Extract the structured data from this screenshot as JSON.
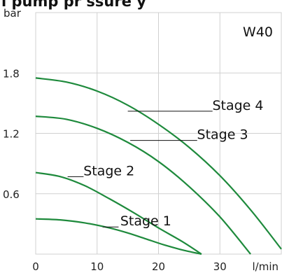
{
  "chart_data": {
    "type": "line",
    "title": "",
    "header_fragment": "l  pump pr ssure y",
    "model_label": "W40",
    "xlabel": "l/min",
    "ylabel": "bar",
    "xlim": [
      0,
      40
    ],
    "ylim": [
      0,
      2.4
    ],
    "x_ticks": [
      0,
      10,
      20,
      30
    ],
    "x_tick_labels": [
      "0",
      "10",
      "20",
      "30"
    ],
    "y_ticks": [
      0.6,
      1.2,
      1.8
    ],
    "y_tick_labels": [
      "0.6",
      "1.2",
      "1.8"
    ],
    "grid": true,
    "series_color": "#1e8a3c",
    "series": [
      {
        "name": "Stage 1",
        "x": [
          0,
          4,
          8,
          12,
          15,
          18,
          21,
          24,
          27
        ],
        "y": [
          0.35,
          0.34,
          0.31,
          0.26,
          0.21,
          0.15,
          0.09,
          0.04,
          0.0
        ],
        "label_x": 14,
        "label_y": 0.27,
        "leader_from_x": 10.9,
        "leader_to_x": 13.5
      },
      {
        "name": "Stage 2",
        "x": [
          0,
          4,
          8,
          12,
          16,
          20,
          24,
          27
        ],
        "y": [
          0.81,
          0.77,
          0.68,
          0.55,
          0.41,
          0.26,
          0.12,
          0.0
        ],
        "label_x": 8,
        "label_y": 0.77,
        "leader_from_x": 5.2,
        "leader_to_x": 7.8
      },
      {
        "name": "Stage 3",
        "x": [
          0,
          5,
          10,
          15,
          20,
          25,
          30,
          35
        ],
        "y": [
          1.37,
          1.34,
          1.25,
          1.11,
          0.92,
          0.67,
          0.37,
          0.0
        ],
        "label_x": 26.5,
        "label_y": 1.13,
        "leader_from_x": 15.4,
        "leader_to_x": 26.3
      },
      {
        "name": "Stage 4",
        "x": [
          0,
          5,
          10,
          15,
          20,
          25,
          30,
          35,
          40
        ],
        "y": [
          1.75,
          1.71,
          1.62,
          1.48,
          1.29,
          1.06,
          0.78,
          0.44,
          0.05
        ],
        "label_x": 29,
        "label_y": 1.42,
        "leader_from_x": 15.0,
        "leader_to_x": 28.8
      }
    ]
  }
}
